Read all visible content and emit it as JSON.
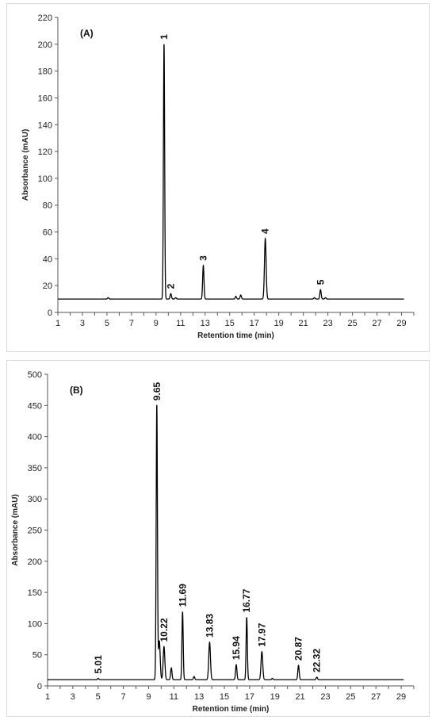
{
  "chart_data": [
    {
      "type": "line",
      "title": "(A)",
      "xlabel": "Retention time (min)",
      "ylabel": "Absorbance (mAU)",
      "xlim": [
        1,
        30
      ],
      "ylim": [
        0,
        220
      ],
      "x_ticks": [
        1,
        3,
        5,
        7,
        9,
        11,
        13,
        15,
        17,
        19,
        21,
        23,
        25,
        27,
        29
      ],
      "y_ticks": [
        0,
        20,
        40,
        60,
        80,
        100,
        120,
        140,
        160,
        180,
        200,
        220
      ],
      "baseline": 10,
      "grid": false,
      "peaks": [
        {
          "x": 5.1,
          "y": 11
        },
        {
          "x": 9.65,
          "y": 200,
          "label": "1"
        },
        {
          "x": 10.2,
          "y": 14,
          "label": "2"
        },
        {
          "x": 10.6,
          "y": 11
        },
        {
          "x": 12.85,
          "y": 35,
          "label": "3"
        },
        {
          "x": 15.5,
          "y": 12
        },
        {
          "x": 15.9,
          "y": 13
        },
        {
          "x": 17.9,
          "y": 55,
          "label": "4"
        },
        {
          "x": 21.9,
          "y": 11
        },
        {
          "x": 22.4,
          "y": 17,
          "label": "5"
        },
        {
          "x": 22.8,
          "y": 11
        }
      ]
    },
    {
      "type": "line",
      "title": "(B)",
      "xlabel": "Retention time (min)",
      "ylabel": "Absorbance (mAU)",
      "xlim": [
        1,
        30
      ],
      "ylim": [
        0,
        500
      ],
      "x_ticks": [
        1,
        3,
        5,
        7,
        9,
        11,
        13,
        15,
        17,
        19,
        21,
        23,
        25,
        27,
        29
      ],
      "y_ticks": [
        0,
        50,
        100,
        150,
        200,
        250,
        300,
        350,
        400,
        450,
        500
      ],
      "baseline": 10,
      "grid": false,
      "peaks": [
        {
          "x": 5.01,
          "y": 12,
          "label": "5.01"
        },
        {
          "x": 9.65,
          "y": 450,
          "label": "9.65"
        },
        {
          "x": 9.85,
          "y": 72
        },
        {
          "x": 10.22,
          "y": 63,
          "label": "10.22"
        },
        {
          "x": 10.8,
          "y": 29
        },
        {
          "x": 11.69,
          "y": 119,
          "label": "11.69"
        },
        {
          "x": 12.6,
          "y": 15
        },
        {
          "x": 13.83,
          "y": 70,
          "label": "13.83"
        },
        {
          "x": 15.94,
          "y": 34,
          "label": "15.94"
        },
        {
          "x": 16.77,
          "y": 110,
          "label": "16.77"
        },
        {
          "x": 17.97,
          "y": 55,
          "label": "17.97"
        },
        {
          "x": 18.8,
          "y": 12
        },
        {
          "x": 20.87,
          "y": 33,
          "label": "20.87"
        },
        {
          "x": 22.32,
          "y": 14,
          "label": "22.32"
        }
      ]
    }
  ]
}
